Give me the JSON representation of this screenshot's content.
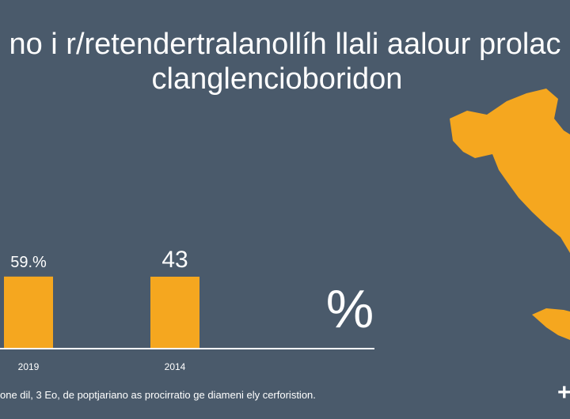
{
  "title_line1": "no i r/retendertralanollíh llali aalour prolac",
  "title_line2": "clanglencioboridon",
  "footnote": "one dil, 3 Eo, de poptjariano as procirratio ge diameni ely cerforistion.",
  "percent_symbol": "%",
  "plus_symbol": "+",
  "colors": {
    "background": "#4a5a6b",
    "bar": "#f5a71f",
    "map": "#f5a71f",
    "axis": "#ffffff",
    "text": "#ffffff"
  },
  "map_icon": "italy-map-silhouette",
  "chart_data": {
    "type": "bar",
    "title": "no i r/retendertralanollíh llali aalour prolac clanglencioboridon",
    "categories": [
      "2019",
      "2014"
    ],
    "values": [
      59,
      43
    ],
    "data_labels": [
      "59.%",
      "43"
    ],
    "xlabel": "",
    "ylabel": "",
    "grid": false,
    "legend": "none"
  }
}
